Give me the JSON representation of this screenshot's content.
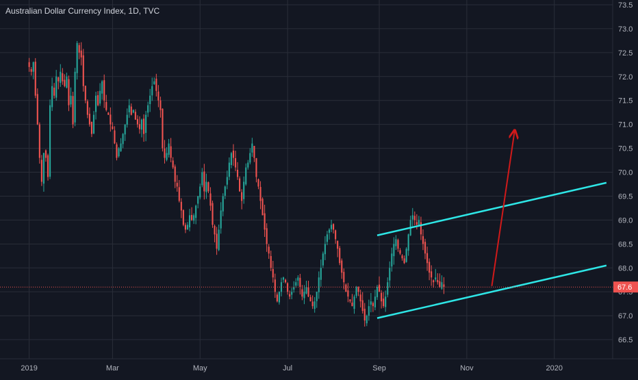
{
  "colors": {
    "background": "#131722",
    "grid": "#2a2e39",
    "axis_text": "#b2b5be",
    "up": "#26a69a",
    "down": "#ef5350",
    "channel": "#2ee6e6",
    "projection": "#d11a1a",
    "price_line": "#ef5350",
    "price_badge": "#ef5350",
    "price_badge_text": "#ffffff"
  },
  "chart_data": {
    "type": "candlestick",
    "title": "Australian Dollar Currency Index, 1D, TVC",
    "xaxis": {
      "ticks": [
        {
          "label": "2019",
          "i": 0
        },
        {
          "label": "Mar",
          "i": 40
        },
        {
          "label": "May",
          "i": 82
        },
        {
          "label": "Jul",
          "i": 124
        },
        {
          "label": "Sep",
          "i": 168
        },
        {
          "label": "Nov",
          "i": 210
        },
        {
          "label": "2020",
          "i": 252
        }
      ]
    },
    "yaxis": {
      "ylim": [
        66.1,
        73.6
      ],
      "ticks": [
        66.5,
        67.0,
        67.5,
        68.0,
        68.5,
        69.0,
        69.5,
        70.0,
        70.5,
        71.0,
        71.5,
        72.0,
        72.5,
        73.0,
        73.5
      ],
      "tick_labels": [
        "66.5",
        "67.0",
        "67.5",
        "68.0",
        "68.5",
        "69.0",
        "69.5",
        "70.0",
        "70.5",
        "71.0",
        "71.5",
        "72.0",
        "72.5",
        "73.0",
        "73.5"
      ]
    },
    "grid": true,
    "x_index_range": [
      -14,
      280
    ],
    "current_price": 67.6,
    "current_price_label": "67.6",
    "closes": [
      72.2,
      72.1,
      72.3,
      71.6,
      71.0,
      70.3,
      69.8,
      70.4,
      70.3,
      69.9,
      71.4,
      71.8,
      71.6,
      72.0,
      71.9,
      72.1,
      71.9,
      71.8,
      72.0,
      71.4,
      71.6,
      71.0,
      72.1,
      72.7,
      72.5,
      72.4,
      71.8,
      71.5,
      71.2,
      71.0,
      70.8,
      71.2,
      71.6,
      71.4,
      71.7,
      71.9,
      71.5,
      71.3,
      71.2,
      71.0,
      70.9,
      70.6,
      70.3,
      70.5,
      70.6,
      70.8,
      71.0,
      71.2,
      71.4,
      71.2,
      71.3,
      71.1,
      71.0,
      70.9,
      71.1,
      70.8,
      71.2,
      71.4,
      71.6,
      71.8,
      71.9,
      71.7,
      71.5,
      71.3,
      70.5,
      70.3,
      70.4,
      70.6,
      70.3,
      70.1,
      69.8,
      69.7,
      69.4,
      69.2,
      68.9,
      68.8,
      68.9,
      69.1,
      69.0,
      69.1,
      69.3,
      69.5,
      69.7,
      70.0,
      69.6,
      69.8,
      69.6,
      69.3,
      68.9,
      68.7,
      68.4,
      68.8,
      69.2,
      69.5,
      69.7,
      69.9,
      70.2,
      70.4,
      70.3,
      70.1,
      69.9,
      69.6,
      69.4,
      69.8,
      70.1,
      70.2,
      70.4,
      70.6,
      70.3,
      69.9,
      69.7,
      69.4,
      69.1,
      68.8,
      68.5,
      68.3,
      68.0,
      67.8,
      67.5,
      67.3,
      67.5,
      67.7,
      67.8,
      67.7,
      67.5,
      67.4,
      67.5,
      67.6,
      67.7,
      67.8,
      67.6,
      67.4,
      67.5,
      67.6,
      67.4,
      67.3,
      67.2,
      67.3,
      67.5,
      67.8,
      68.0,
      68.3,
      68.5,
      68.7,
      68.8,
      68.9,
      68.8,
      68.6,
      68.4,
      68.1,
      67.9,
      67.7,
      67.5,
      67.4,
      67.3,
      67.2,
      67.4,
      67.6,
      67.5,
      67.3,
      67.1,
      66.9,
      67.0,
      67.2,
      67.3,
      67.2,
      67.4,
      67.6,
      67.5,
      67.3,
      67.2,
      67.4,
      67.7,
      68.0,
      68.3,
      68.5,
      68.6,
      68.4,
      68.3,
      68.2,
      68.1,
      68.4,
      68.7,
      69.0,
      69.1,
      69.0,
      68.9,
      69.0,
      68.7,
      68.5,
      68.3,
      68.1,
      67.9,
      67.8,
      67.7,
      67.8,
      67.7,
      67.6,
      67.7,
      67.6
    ],
    "overlays": [
      {
        "type": "line",
        "name": "channel-upper",
        "from": [
          167,
          68.68
        ],
        "to": [
          277,
          69.78
        ]
      },
      {
        "type": "line",
        "name": "channel-lower",
        "from": [
          167,
          66.95
        ],
        "to": [
          277,
          68.05
        ]
      },
      {
        "type": "arrow",
        "name": "projection-arrow",
        "from": [
          222,
          67.62
        ],
        "to": [
          233,
          70.88
        ]
      }
    ]
  }
}
